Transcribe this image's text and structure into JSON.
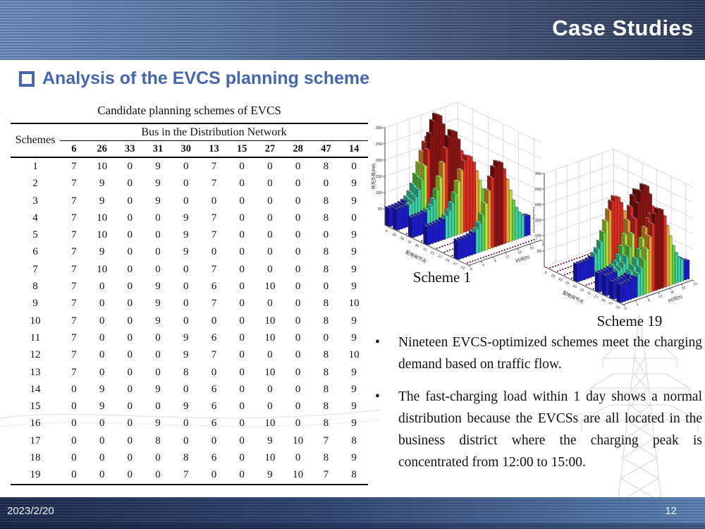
{
  "header": {
    "title": "Case Studies"
  },
  "section": {
    "title": "Analysis of the EVCS planning scheme"
  },
  "table": {
    "title": "Candidate planning schemes of EVCS",
    "schemes_header": "Schemes",
    "group_header": "Bus in the Distribution Network",
    "bus_columns": [
      "6",
      "26",
      "33",
      "31",
      "30",
      "13",
      "15",
      "27",
      "28",
      "47",
      "14"
    ],
    "rows": [
      {
        "scheme": "1",
        "values": [
          7,
          10,
          0,
          9,
          0,
          7,
          0,
          0,
          0,
          8,
          0
        ]
      },
      {
        "scheme": "2",
        "values": [
          7,
          9,
          0,
          9,
          0,
          7,
          0,
          0,
          0,
          0,
          9
        ]
      },
      {
        "scheme": "3",
        "values": [
          7,
          9,
          0,
          9,
          0,
          0,
          0,
          0,
          0,
          8,
          9
        ]
      },
      {
        "scheme": "4",
        "values": [
          7,
          10,
          0,
          0,
          9,
          7,
          0,
          0,
          0,
          8,
          0
        ]
      },
      {
        "scheme": "5",
        "values": [
          7,
          10,
          0,
          0,
          9,
          7,
          0,
          0,
          0,
          0,
          9
        ]
      },
      {
        "scheme": "6",
        "values": [
          7,
          9,
          0,
          0,
          9,
          0,
          0,
          0,
          0,
          8,
          9
        ]
      },
      {
        "scheme": "7",
        "values": [
          7,
          10,
          0,
          0,
          0,
          7,
          0,
          0,
          0,
          8,
          9
        ]
      },
      {
        "scheme": "8",
        "values": [
          7,
          0,
          0,
          9,
          0,
          6,
          0,
          10,
          0,
          0,
          9
        ]
      },
      {
        "scheme": "9",
        "values": [
          7,
          0,
          0,
          9,
          0,
          7,
          0,
          0,
          0,
          8,
          10
        ]
      },
      {
        "scheme": "10",
        "values": [
          7,
          0,
          0,
          9,
          0,
          0,
          0,
          10,
          0,
          8,
          9
        ]
      },
      {
        "scheme": "11",
        "values": [
          7,
          0,
          0,
          0,
          9,
          6,
          0,
          10,
          0,
          0,
          9
        ]
      },
      {
        "scheme": "12",
        "values": [
          7,
          0,
          0,
          0,
          9,
          7,
          0,
          0,
          0,
          8,
          10
        ]
      },
      {
        "scheme": "13",
        "values": [
          7,
          0,
          0,
          0,
          8,
          0,
          0,
          10,
          0,
          8,
          9
        ]
      },
      {
        "scheme": "14",
        "values": [
          0,
          9,
          0,
          9,
          0,
          6,
          0,
          0,
          0,
          8,
          9
        ]
      },
      {
        "scheme": "15",
        "values": [
          0,
          9,
          0,
          0,
          9,
          6,
          0,
          0,
          0,
          8,
          9
        ]
      },
      {
        "scheme": "16",
        "values": [
          0,
          0,
          0,
          9,
          0,
          6,
          0,
          10,
          0,
          8,
          9
        ]
      },
      {
        "scheme": "17",
        "values": [
          0,
          0,
          0,
          8,
          0,
          0,
          0,
          9,
          10,
          7,
          8
        ]
      },
      {
        "scheme": "18",
        "values": [
          0,
          0,
          0,
          0,
          8,
          6,
          0,
          10,
          0,
          8,
          9
        ]
      },
      {
        "scheme": "19",
        "values": [
          0,
          0,
          0,
          0,
          7,
          0,
          0,
          9,
          10,
          7,
          8
        ]
      }
    ]
  },
  "chart_data": [
    {
      "type": "bar",
      "variant": "3d-bar-grid",
      "caption": "Scheme 1",
      "ylabel": "快充负荷(kW)",
      "node_axis_label": "配电网节点",
      "time_axis_label": "时间(h)",
      "yticks": [
        50,
        100,
        150,
        200,
        250,
        300
      ],
      "ylim": [
        0,
        300
      ],
      "time_ticks": [
        0,
        4,
        8,
        12,
        16,
        20,
        24
      ],
      "node_labels": [
        "6",
        "26",
        "33",
        "31",
        "30",
        "13",
        "15",
        "27",
        "28",
        "47",
        "14"
      ],
      "chargers_per_node": [
        7,
        10,
        0,
        9,
        0,
        7,
        0,
        0,
        0,
        8,
        0
      ],
      "load_model": {
        "shape": "normal",
        "peak_hour": 13.2,
        "sigma": 3.2,
        "base": 38,
        "per_charger_base": 2.6,
        "per_charger_peak": 25
      },
      "color_scale": {
        "thresholds": [
          68,
          108,
          140,
          170,
          200,
          240
        ],
        "colors": [
          "#1a1acd",
          "#3bcfa4",
          "#5fd44a",
          "#b3dc3b",
          "#e79b35",
          "#d92b20",
          "#8a1210"
        ]
      },
      "zero_line_color": "#6e1038"
    },
    {
      "type": "bar",
      "variant": "3d-bar-grid",
      "caption": "Scheme 19",
      "ylabel": "快充负荷(kW)",
      "node_axis_label": "配电网节点",
      "time_axis_label": "时间(h)",
      "yticks": [
        50,
        100,
        150,
        200,
        250,
        300
      ],
      "ylim": [
        0,
        300
      ],
      "time_ticks": [
        0,
        4,
        8,
        12,
        16,
        20,
        24
      ],
      "node_labels": [
        "6",
        "26",
        "33",
        "31",
        "30",
        "13",
        "15",
        "27",
        "28",
        "47",
        "14"
      ],
      "chargers_per_node": [
        0,
        0,
        0,
        0,
        7,
        0,
        0,
        9,
        10,
        7,
        8
      ],
      "load_model": {
        "shape": "normal",
        "peak_hour": 13.2,
        "sigma": 3.2,
        "base": 38,
        "per_charger_base": 2.6,
        "per_charger_peak": 25
      },
      "color_scale": {
        "thresholds": [
          68,
          108,
          140,
          170,
          200,
          240
        ],
        "colors": [
          "#1a1acd",
          "#3bcfa4",
          "#5fd44a",
          "#b3dc3b",
          "#e79b35",
          "#d92b20",
          "#8a1210"
        ]
      },
      "zero_line_color": "#6e1038"
    }
  ],
  "bullets": [
    "Nineteen EVCS-optimized schemes meet the charging demand based on traffic flow.",
    "The fast-charging load within 1 day shows a normal distribution because the EVCSs are all located in the business district where the charging peak is concentrated from 12:00 to 15:00."
  ],
  "footer": {
    "date": "2023/2/20",
    "page": "12"
  }
}
